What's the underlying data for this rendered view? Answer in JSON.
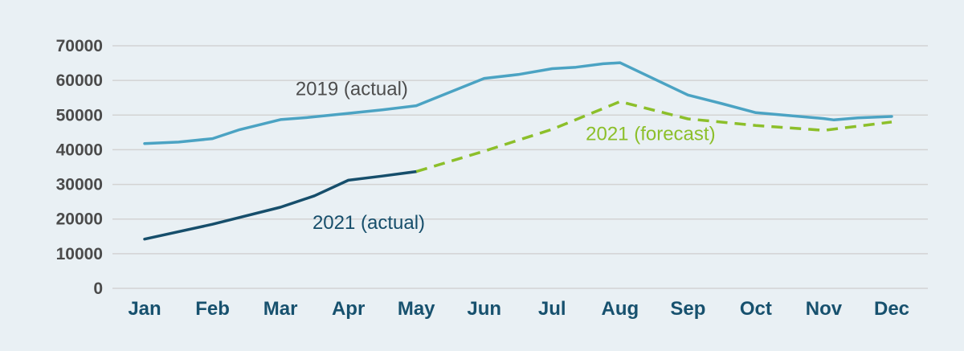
{
  "chart_data": {
    "type": "line",
    "categories": [
      "Jan",
      "Feb",
      "Mar",
      "Apr",
      "May",
      "Jun",
      "Jul",
      "Aug",
      "Sep",
      "Oct",
      "Nov",
      "Dec"
    ],
    "yticks": [
      0,
      10000,
      20000,
      30000,
      40000,
      50000,
      60000,
      70000
    ],
    "ylim": [
      0,
      70000
    ],
    "grid": true,
    "series": [
      {
        "name": "2019 (actual)",
        "color": "#4ba3c3",
        "dash": "solid",
        "points": [
          {
            "x": 0,
            "y": 41800
          },
          {
            "x": 0.5,
            "y": 42200
          },
          {
            "x": 1,
            "y": 43200
          },
          {
            "x": 1.4,
            "y": 45800
          },
          {
            "x": 2,
            "y": 48700
          },
          {
            "x": 2.4,
            "y": 49300
          },
          {
            "x": 3,
            "y": 50500
          },
          {
            "x": 3.5,
            "y": 51500
          },
          {
            "x": 4,
            "y": 52700
          },
          {
            "x": 5,
            "y": 60600
          },
          {
            "x": 5.5,
            "y": 61700
          },
          {
            "x": 6,
            "y": 63400
          },
          {
            "x": 6.35,
            "y": 63800
          },
          {
            "x": 6.75,
            "y": 64800
          },
          {
            "x": 7,
            "y": 65100
          },
          {
            "x": 8,
            "y": 55800
          },
          {
            "x": 8.5,
            "y": 53300
          },
          {
            "x": 9,
            "y": 50700
          },
          {
            "x": 10,
            "y": 49000
          },
          {
            "x": 10.15,
            "y": 48600
          },
          {
            "x": 10.5,
            "y": 49200
          },
          {
            "x": 11,
            "y": 49600
          }
        ]
      },
      {
        "name": "2021 (actual)",
        "color": "#164e6b",
        "dash": "solid",
        "points": [
          {
            "x": 0,
            "y": 14200
          },
          {
            "x": 1,
            "y": 18500
          },
          {
            "x": 2,
            "y": 23400
          },
          {
            "x": 2.5,
            "y": 26700
          },
          {
            "x": 3,
            "y": 31200
          },
          {
            "x": 3.5,
            "y": 32400
          },
          {
            "x": 4,
            "y": 33700
          }
        ]
      },
      {
        "name": "2021 (forecast)",
        "color": "#8cbf2a",
        "dash": "dashed",
        "points": [
          {
            "x": 4,
            "y": 33700
          },
          {
            "x": 5,
            "y": 39600
          },
          {
            "x": 6,
            "y": 45900
          },
          {
            "x": 7,
            "y": 53900
          },
          {
            "x": 8,
            "y": 48900
          },
          {
            "x": 9,
            "y": 47000
          },
          {
            "x": 10,
            "y": 45600
          },
          {
            "x": 11,
            "y": 48000
          }
        ]
      }
    ],
    "annotations": [
      {
        "text": "2019 (actual)",
        "color": "#4d4d4d",
        "x": 3.05,
        "y": 55800
      },
      {
        "text": "2021 (actual)",
        "color": "#164e6b",
        "x": 3.3,
        "y": 17200
      },
      {
        "text": "2021 (forecast)",
        "color": "#8cbf2a",
        "x": 7.45,
        "y": 42800
      }
    ]
  }
}
